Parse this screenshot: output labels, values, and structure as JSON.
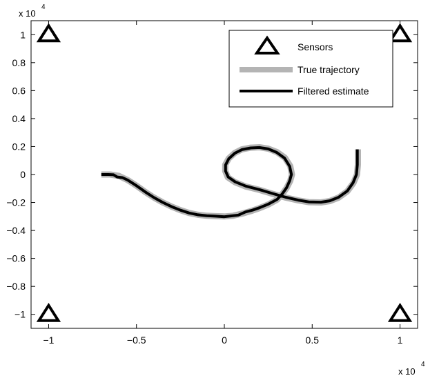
{
  "chart_data": {
    "type": "line",
    "title": "",
    "xlabel": "",
    "ylabel": "",
    "x_exponent_label": "x 10",
    "x_exponent_power": "4",
    "y_exponent_label": "x 10",
    "y_exponent_power": "4",
    "xlim": [
      -1.1,
      1.1
    ],
    "ylim": [
      -1.1,
      1.1
    ],
    "x_ticks": [
      {
        "value": -1,
        "label": "−1"
      },
      {
        "value": -0.5,
        "label": "−0.5"
      },
      {
        "value": 0,
        "label": "0"
      },
      {
        "value": 0.5,
        "label": "0.5"
      },
      {
        "value": 1,
        "label": "1"
      }
    ],
    "y_ticks": [
      {
        "value": 1,
        "label": "1"
      },
      {
        "value": 0.8,
        "label": "0.8"
      },
      {
        "value": 0.6,
        "label": "0.6"
      },
      {
        "value": 0.4,
        "label": "0.4"
      },
      {
        "value": 0.2,
        "label": "0.2"
      },
      {
        "value": 0,
        "label": "0"
      },
      {
        "value": -0.2,
        "label": "−0.2"
      },
      {
        "value": -0.4,
        "label": "−0.4"
      },
      {
        "value": -0.6,
        "label": "−0.6"
      },
      {
        "value": -0.8,
        "label": "−0.8"
      },
      {
        "value": -1,
        "label": "−1"
      }
    ],
    "grid": false,
    "legend_position": "top-right",
    "legend": [
      {
        "label": "Sensors",
        "marker": "triangle",
        "color": "#000000"
      },
      {
        "label": "True trajectory",
        "marker": "line",
        "color": "#b4b4b4"
      },
      {
        "label": "Filtered estimate",
        "marker": "line",
        "color": "#000000"
      }
    ],
    "sensors": {
      "name": "Sensors",
      "color": "#000000",
      "points": [
        {
          "x": -1,
          "y": 1
        },
        {
          "x": 1,
          "y": 1
        },
        {
          "x": -1,
          "y": -1
        },
        {
          "x": 1,
          "y": -1
        }
      ]
    },
    "series": [
      {
        "name": "True trajectory",
        "color": "#b4b4b4",
        "points": [
          [
            -0.7,
            0.0
          ],
          [
            -0.65,
            0.0
          ],
          [
            -0.6,
            -0.01
          ],
          [
            -0.55,
            -0.04
          ],
          [
            -0.5,
            -0.08
          ],
          [
            -0.45,
            -0.125
          ],
          [
            -0.4,
            -0.165
          ],
          [
            -0.35,
            -0.2
          ],
          [
            -0.3,
            -0.23
          ],
          [
            -0.25,
            -0.255
          ],
          [
            -0.2,
            -0.275
          ],
          [
            -0.15,
            -0.288
          ],
          [
            -0.1,
            -0.295
          ],
          [
            -0.05,
            -0.298
          ],
          [
            0.0,
            -0.3
          ],
          [
            0.05,
            -0.295
          ],
          [
            0.1,
            -0.28
          ],
          [
            0.15,
            -0.262
          ],
          [
            0.2,
            -0.24
          ],
          [
            0.25,
            -0.215
          ],
          [
            0.3,
            -0.18
          ],
          [
            0.33,
            -0.14
          ],
          [
            0.355,
            -0.095
          ],
          [
            0.375,
            -0.045
          ],
          [
            0.385,
            0.0
          ],
          [
            0.375,
            0.06
          ],
          [
            0.345,
            0.12
          ],
          [
            0.3,
            0.16
          ],
          [
            0.25,
            0.185
          ],
          [
            0.2,
            0.195
          ],
          [
            0.15,
            0.192
          ],
          [
            0.1,
            0.18
          ],
          [
            0.06,
            0.155
          ],
          [
            0.025,
            0.115
          ],
          [
            0.005,
            0.07
          ],
          [
            0.005,
            0.025
          ],
          [
            0.02,
            -0.02
          ],
          [
            0.06,
            -0.055
          ],
          [
            0.12,
            -0.085
          ],
          [
            0.2,
            -0.11
          ],
          [
            0.28,
            -0.14
          ],
          [
            0.35,
            -0.165
          ],
          [
            0.42,
            -0.185
          ],
          [
            0.48,
            -0.198
          ],
          [
            0.55,
            -0.2
          ],
          [
            0.6,
            -0.19
          ],
          [
            0.65,
            -0.165
          ],
          [
            0.7,
            -0.12
          ],
          [
            0.735,
            -0.06
          ],
          [
            0.755,
            0.0
          ],
          [
            0.76,
            0.07
          ],
          [
            0.76,
            0.18
          ]
        ]
      },
      {
        "name": "Filtered estimate",
        "color": "#000000",
        "points": [
          [
            -0.7,
            0.0
          ],
          [
            -0.66,
            0.0
          ],
          [
            -0.63,
            -0.002
          ],
          [
            -0.61,
            -0.018
          ],
          [
            -0.58,
            -0.022
          ],
          [
            -0.55,
            -0.04
          ],
          [
            -0.5,
            -0.08
          ],
          [
            -0.45,
            -0.125
          ],
          [
            -0.4,
            -0.165
          ],
          [
            -0.35,
            -0.2
          ],
          [
            -0.3,
            -0.23
          ],
          [
            -0.25,
            -0.255
          ],
          [
            -0.2,
            -0.275
          ],
          [
            -0.15,
            -0.288
          ],
          [
            -0.1,
            -0.295
          ],
          [
            -0.05,
            -0.298
          ],
          [
            0.0,
            -0.302
          ],
          [
            0.04,
            -0.296
          ],
          [
            0.08,
            -0.29
          ],
          [
            0.12,
            -0.268
          ],
          [
            0.16,
            -0.255
          ],
          [
            0.2,
            -0.238
          ],
          [
            0.25,
            -0.212
          ],
          [
            0.3,
            -0.178
          ],
          [
            0.33,
            -0.138
          ],
          [
            0.355,
            -0.092
          ],
          [
            0.372,
            -0.045
          ],
          [
            0.382,
            0.0
          ],
          [
            0.372,
            0.058
          ],
          [
            0.342,
            0.118
          ],
          [
            0.298,
            0.158
          ],
          [
            0.25,
            0.183
          ],
          [
            0.2,
            0.193
          ],
          [
            0.15,
            0.19
          ],
          [
            0.1,
            0.178
          ],
          [
            0.06,
            0.153
          ],
          [
            0.025,
            0.113
          ],
          [
            0.007,
            0.068
          ],
          [
            0.007,
            0.025
          ],
          [
            0.022,
            -0.018
          ],
          [
            0.062,
            -0.053
          ],
          [
            0.122,
            -0.083
          ],
          [
            0.2,
            -0.108
          ],
          [
            0.28,
            -0.138
          ],
          [
            0.35,
            -0.163
          ],
          [
            0.42,
            -0.183
          ],
          [
            0.48,
            -0.196
          ],
          [
            0.55,
            -0.198
          ],
          [
            0.6,
            -0.188
          ],
          [
            0.65,
            -0.163
          ],
          [
            0.7,
            -0.118
          ],
          [
            0.733,
            -0.058
          ],
          [
            0.752,
            0.0
          ],
          [
            0.757,
            0.07
          ],
          [
            0.757,
            0.18
          ]
        ]
      }
    ]
  }
}
